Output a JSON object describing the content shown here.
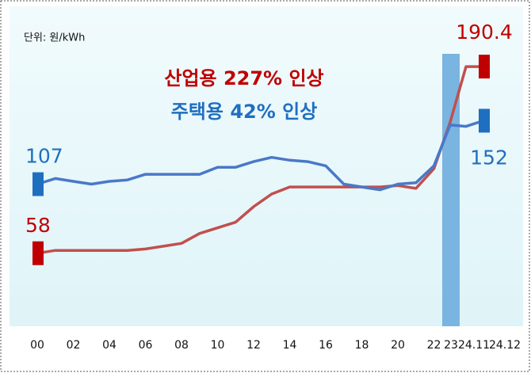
{
  "chart_data": {
    "type": "line",
    "unit_note": "단위: 원/kWh",
    "annotations": [
      {
        "text": "산업용 227% 인상",
        "color": "#c00000"
      },
      {
        "text": "주택용 42% 인상",
        "color": "#1f6fc0"
      }
    ],
    "categories": [
      "00",
      null,
      "02",
      null,
      "04",
      null,
      "06",
      null,
      "08",
      null,
      "10",
      null,
      "12",
      null,
      "14",
      null,
      "16",
      null,
      "18",
      null,
      "20",
      null,
      "22",
      "23",
      "24.11",
      "24.12"
    ],
    "series": [
      {
        "color": "#c0504d",
        "label_color": "#c00000",
        "values": [
          58,
          60,
          60,
          60,
          60,
          60,
          61,
          63,
          65,
          72,
          76,
          80,
          91,
          100,
          105,
          105,
          105,
          105,
          105,
          105,
          106,
          104,
          118,
          151,
          190.4,
          190.4
        ]
      },
      {
        "color": "#4a78c8",
        "label_color": "#1f6fc0",
        "values": [
          107,
          111,
          109,
          107,
          109,
          110,
          114,
          114,
          114,
          114,
          119,
          119,
          123,
          126,
          124,
          123,
          120,
          107,
          105,
          103,
          107,
          108,
          120,
          149,
          148,
          152
        ]
      }
    ],
    "highlight_category": "23"
  }
}
